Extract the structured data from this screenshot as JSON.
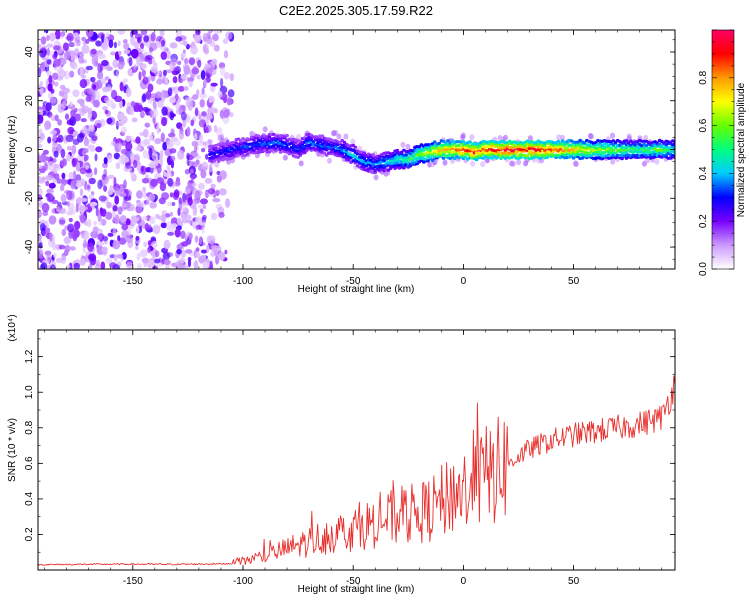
{
  "chart_data": [
    {
      "type": "heatmap",
      "title": "C2E2.2025.305.17.59.R22",
      "xlabel": "Height of straight line (km)",
      "ylabel": "Frequency (Hz)",
      "xlim": [
        -193,
        96
      ],
      "ylim": [
        -49,
        49
      ],
      "x_ticks": [
        -150,
        -100,
        -50,
        0,
        50
      ],
      "x_tick_labels": [
        "-150",
        "-100",
        "-50",
        "0",
        "50"
      ],
      "y_ticks": [
        -40,
        -20,
        0,
        20,
        40
      ],
      "y_tick_labels": [
        "-40",
        "-20",
        "0",
        "20",
        "40"
      ],
      "colorbar": {
        "label": "Normalized spectral amplitude",
        "range": [
          0,
          1
        ],
        "ticks": [
          0,
          0.2,
          0.4,
          0.6,
          0.8
        ],
        "tick_labels": [
          "0.0",
          "0.2",
          "0.4",
          "0.6",
          "0.8"
        ],
        "colors": [
          "#ffffff",
          "#cc99ff",
          "#7700ff",
          "#0000ff",
          "#00ccff",
          "#00ff80",
          "#66ff00",
          "#ffff00",
          "#ff9900",
          "#ff0000",
          "#ff0066"
        ]
      },
      "noise_region": {
        "x_range": [
          -193,
          -105
        ],
        "amplitude_range": [
          0.05,
          0.25
        ]
      },
      "signal_track": {
        "x": [
          -115,
          -105,
          -95,
          -85,
          -80,
          -75,
          -70,
          -65,
          -60,
          -55,
          -50,
          -45,
          -40,
          -35,
          -30,
          -25,
          -20,
          -15,
          -10,
          -5,
          0,
          5,
          10,
          15,
          20,
          30,
          40,
          50,
          60,
          70,
          80,
          90,
          96
        ],
        "freq": [
          -2,
          0,
          2,
          3,
          2,
          0,
          3,
          2,
          1,
          0,
          -2,
          -5,
          -6,
          -5,
          -4,
          -4,
          -2,
          -1,
          0,
          0,
          0,
          -1,
          0,
          0,
          0,
          0,
          0,
          0,
          0,
          0,
          0,
          0,
          0
        ],
        "amplitude": [
          0.32,
          0.34,
          0.36,
          0.38,
          0.36,
          0.35,
          0.4,
          0.38,
          0.36,
          0.4,
          0.45,
          0.42,
          0.4,
          0.45,
          0.5,
          0.55,
          0.62,
          0.7,
          0.8,
          0.85,
          0.9,
          0.92,
          0.88,
          0.95,
          0.98,
          0.96,
          0.9,
          0.78,
          0.68,
          0.6,
          0.55,
          0.62,
          0.5
        ]
      }
    },
    {
      "type": "line",
      "xlabel": "Height of straight line (km)",
      "ylabel": "SNR (10 * v/v)",
      "y_multiplier": "(x10⁴)",
      "xlim": [
        -193,
        96
      ],
      "ylim": [
        0,
        13500
      ],
      "x_ticks": [
        -150,
        -100,
        -50,
        0,
        50
      ],
      "x_tick_labels": [
        "-150",
        "-100",
        "-50",
        "0",
        "50"
      ],
      "y_ticks": [
        2000,
        4000,
        6000,
        8000,
        10000,
        12000
      ],
      "y_tick_labels": [
        "0.2",
        "0.4",
        "0.6",
        "0.8",
        "1.0",
        "1.2"
      ],
      "series": [
        {
          "name": "SNR",
          "color": "#e8312f",
          "x": [
            -193,
            -170,
            -150,
            -130,
            -115,
            -105,
            -100,
            -90,
            -80,
            -70,
            -60,
            -50,
            -40,
            -30,
            -20,
            -15,
            -10,
            -5,
            0,
            5,
            10,
            15,
            20,
            25,
            30,
            40,
            50,
            60,
            70,
            80,
            90,
            92,
            94,
            96
          ],
          "y": [
            300,
            320,
            330,
            320,
            340,
            360,
            500,
            800,
            1200,
            1600,
            2000,
            2300,
            2700,
            3000,
            3200,
            3400,
            3800,
            4300,
            4500,
            4800,
            5300,
            5500,
            6000,
            6400,
            6800,
            7300,
            7600,
            7800,
            8000,
            8200,
            8600,
            9200,
            9800,
            10500
          ]
        }
      ]
    }
  ]
}
